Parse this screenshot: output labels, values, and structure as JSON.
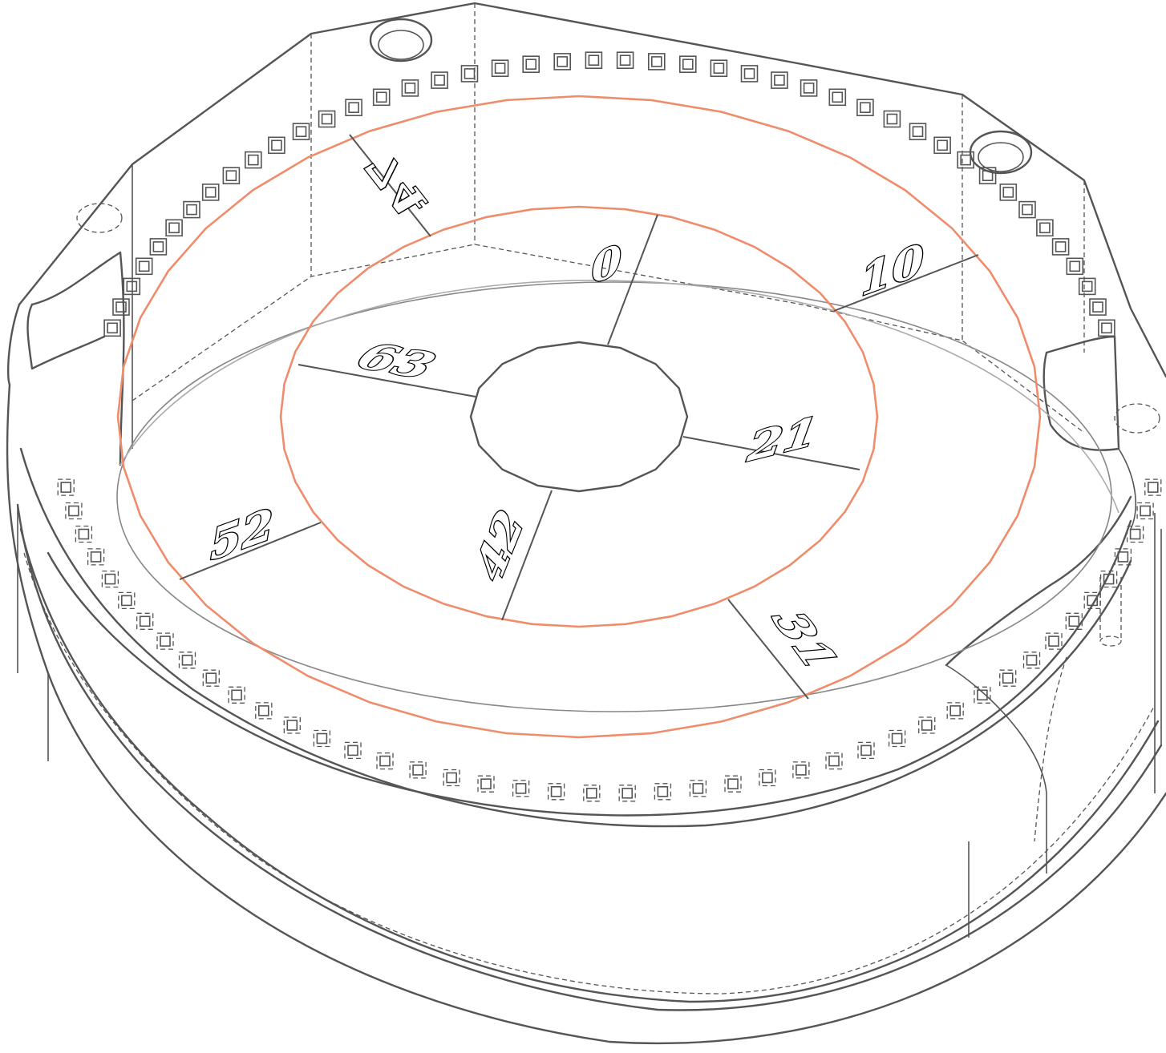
{
  "diagram": {
    "ring_color": "#ef8c6c",
    "line_color": "#555555",
    "labels": [
      {
        "id": "0",
        "text": "0"
      },
      {
        "id": "10",
        "text": "10"
      },
      {
        "id": "21",
        "text": "21"
      },
      {
        "id": "31",
        "text": "31"
      },
      {
        "id": "42",
        "text": "42"
      },
      {
        "id": "52",
        "text": "52"
      },
      {
        "id": "63",
        "text": "63"
      },
      {
        "id": "74",
        "text": "74"
      }
    ]
  }
}
